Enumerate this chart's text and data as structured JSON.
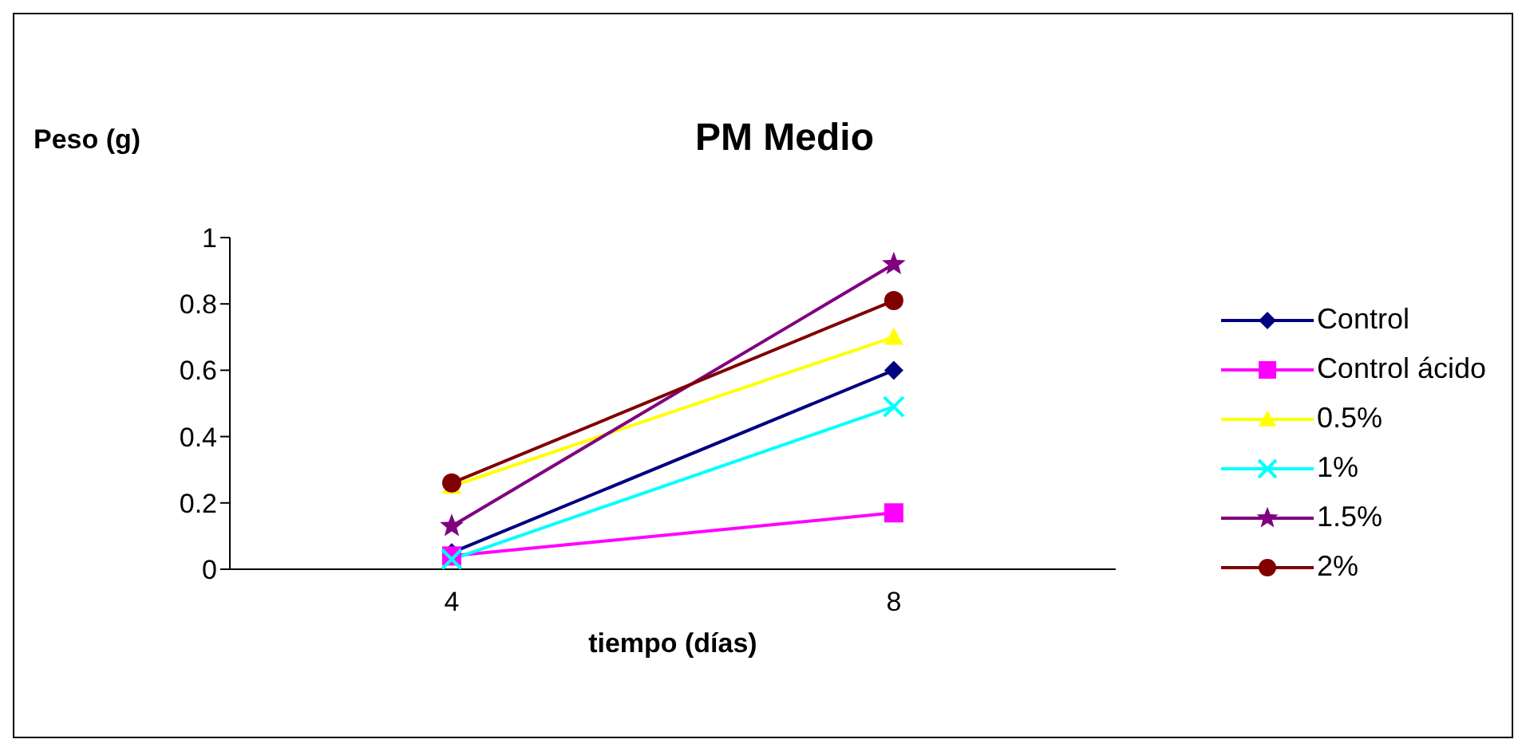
{
  "chart_data": {
    "type": "line",
    "title": "PM Medio",
    "xlabel": "tiempo (días)",
    "ylabel": "Peso (g)",
    "categories": [
      "4",
      "8"
    ],
    "series": [
      {
        "name": "Control",
        "color": "#000080",
        "marker": "diamond",
        "values": [
          0.05,
          0.6
        ]
      },
      {
        "name": "Control ácido",
        "color": "#ff00ff",
        "marker": "square",
        "values": [
          0.04,
          0.17
        ]
      },
      {
        "name": "0.5%",
        "color": "#ffff00",
        "marker": "triangle",
        "values": [
          0.25,
          0.7
        ]
      },
      {
        "name": "1%",
        "color": "#00ffff",
        "marker": "cross",
        "values": [
          0.03,
          0.49
        ]
      },
      {
        "name": "1.5%",
        "color": "#800080",
        "marker": "star",
        "values": [
          0.13,
          0.92
        ]
      },
      {
        "name": "2%",
        "color": "#800000",
        "marker": "circle",
        "values": [
          0.26,
          0.81
        ]
      }
    ],
    "ylim": [
      0,
      1
    ],
    "yticks": [
      0,
      0.2,
      0.4,
      0.6,
      0.8,
      1
    ],
    "grid": false,
    "legend": "right",
    "line_style": "solid"
  }
}
